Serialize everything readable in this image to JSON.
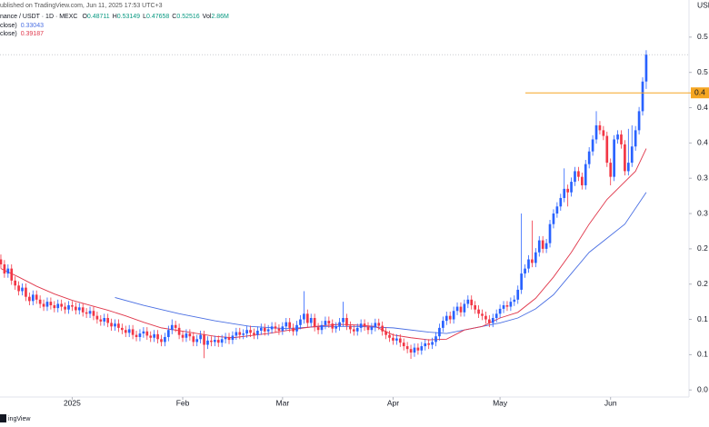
{
  "chart_data": {
    "type": "candlestick",
    "published": "ublished on TradingView.com, Jun 11, 2025 17:53 UTC+3",
    "symbol": "nance / USDT · 1D · MEXC",
    "ohlc_labels": [
      "O",
      "H",
      "L",
      "C"
    ],
    "volume_label": "Vol",
    "volume": "2.86M",
    "currency": "USD",
    "footer": "ingView",
    "up_color": "#2962ff",
    "down_color": "#f23645",
    "xlim": [
      -0.25,
      193
    ],
    "ylim": [
      0.04,
      0.6
    ],
    "xticks": [
      {
        "value": 20,
        "label": "2025"
      },
      {
        "value": 51,
        "label": "Feb"
      },
      {
        "value": 79,
        "label": "Mar"
      },
      {
        "value": 110,
        "label": "Apr"
      },
      {
        "value": 140,
        "label": "May"
      },
      {
        "value": 171,
        "label": "Jun"
      }
    ],
    "yticks": [
      {
        "value": 0.55,
        "label": "0.5"
      },
      {
        "value": 0.5,
        "label": "0.5"
      },
      {
        "value": 0.45,
        "label": "0.4"
      },
      {
        "value": 0.4,
        "label": "0.4"
      },
      {
        "value": 0.35,
        "label": "0.3"
      },
      {
        "value": 0.3,
        "label": "0.3"
      },
      {
        "value": 0.25,
        "label": "0.2"
      },
      {
        "value": 0.2,
        "label": "0.2"
      },
      {
        "value": 0.15,
        "label": "0.1"
      },
      {
        "value": 0.1,
        "label": "0.1"
      },
      {
        "value": 0.05,
        "label": "0.0"
      }
    ],
    "hline": {
      "value": 0.471,
      "label": "0.4",
      "color": "#f5a623"
    },
    "ma": [
      {
        "name": "close)",
        "color": "#4a6fe3",
        "last": 0.33043,
        "x": [
          32,
          40,
          50,
          60,
          70,
          80,
          90,
          100,
          110,
          120,
          125,
          130,
          135,
          140,
          145,
          150,
          155,
          160,
          165,
          170,
          175,
          181
        ],
        "values": [
          0.181,
          0.17,
          0.158,
          0.148,
          0.14,
          0.137,
          0.14,
          0.14,
          0.138,
          0.132,
          0.13,
          0.135,
          0.14,
          0.145,
          0.152,
          0.165,
          0.185,
          0.215,
          0.245,
          0.265,
          0.285,
          0.33
        ]
      },
      {
        "name": "close)",
        "color": "#e0364a",
        "last": 0.39187,
        "x": [
          0,
          5,
          10,
          15,
          20,
          25,
          30,
          35,
          40,
          45,
          50,
          55,
          60,
          65,
          70,
          75,
          80,
          85,
          90,
          95,
          100,
          105,
          110,
          115,
          120,
          125,
          130,
          135,
          140,
          145,
          150,
          155,
          160,
          165,
          170,
          175,
          178,
          181
        ],
        "values": [
          0.222,
          0.21,
          0.197,
          0.186,
          0.177,
          0.17,
          0.163,
          0.155,
          0.146,
          0.138,
          0.134,
          0.13,
          0.126,
          0.124,
          0.127,
          0.13,
          0.134,
          0.138,
          0.141,
          0.143,
          0.142,
          0.14,
          0.128,
          0.124,
          0.121,
          0.122,
          0.135,
          0.14,
          0.152,
          0.16,
          0.18,
          0.21,
          0.245,
          0.285,
          0.32,
          0.345,
          0.36,
          0.392
        ]
      }
    ],
    "ohlc": [
      [
        0.235,
        0.242,
        0.222,
        0.228
      ],
      [
        0.228,
        0.234,
        0.209,
        0.215
      ],
      [
        0.215,
        0.228,
        0.209,
        0.222
      ],
      [
        0.222,
        0.228,
        0.199,
        0.205
      ],
      [
        0.205,
        0.211,
        0.192,
        0.198
      ],
      [
        0.198,
        0.204,
        0.184,
        0.19
      ],
      [
        0.19,
        0.201,
        0.184,
        0.195
      ],
      [
        0.195,
        0.201,
        0.176,
        0.182
      ],
      [
        0.182,
        0.188,
        0.17,
        0.176
      ],
      [
        0.176,
        0.191,
        0.17,
        0.185
      ],
      [
        0.185,
        0.191,
        0.172,
        0.178
      ],
      [
        0.178,
        0.184,
        0.166,
        0.172
      ],
      [
        0.172,
        0.178,
        0.162,
        0.168
      ],
      [
        0.168,
        0.181,
        0.162,
        0.175
      ],
      [
        0.175,
        0.181,
        0.164,
        0.17
      ],
      [
        0.17,
        0.176,
        0.16,
        0.166
      ],
      [
        0.166,
        0.178,
        0.16,
        0.172
      ],
      [
        0.172,
        0.178,
        0.162,
        0.168
      ],
      [
        0.168,
        0.174,
        0.158,
        0.164
      ],
      [
        0.164,
        0.176,
        0.158,
        0.17
      ],
      [
        0.17,
        0.176,
        0.162,
        0.168
      ],
      [
        0.168,
        0.174,
        0.157,
        0.163
      ],
      [
        0.163,
        0.173,
        0.157,
        0.167
      ],
      [
        0.167,
        0.173,
        0.154,
        0.16
      ],
      [
        0.16,
        0.166,
        0.152,
        0.158
      ],
      [
        0.158,
        0.168,
        0.152,
        0.162
      ],
      [
        0.162,
        0.168,
        0.149,
        0.155
      ],
      [
        0.155,
        0.161,
        0.144,
        0.15
      ],
      [
        0.15,
        0.156,
        0.141,
        0.147
      ],
      [
        0.147,
        0.158,
        0.141,
        0.152
      ],
      [
        0.152,
        0.158,
        0.139,
        0.145
      ],
      [
        0.145,
        0.151,
        0.134,
        0.14
      ],
      [
        0.14,
        0.15,
        0.134,
        0.144
      ],
      [
        0.144,
        0.15,
        0.132,
        0.138
      ],
      [
        0.138,
        0.144,
        0.129,
        0.135
      ],
      [
        0.135,
        0.141,
        0.125,
        0.131
      ],
      [
        0.131,
        0.142,
        0.125,
        0.136
      ],
      [
        0.136,
        0.142,
        0.122,
        0.128
      ],
      [
        0.128,
        0.134,
        0.119,
        0.125
      ],
      [
        0.125,
        0.136,
        0.119,
        0.13
      ],
      [
        0.13,
        0.139,
        0.124,
        0.133
      ],
      [
        0.133,
        0.139,
        0.121,
        0.127
      ],
      [
        0.127,
        0.133,
        0.118,
        0.124
      ],
      [
        0.124,
        0.135,
        0.118,
        0.129
      ],
      [
        0.129,
        0.135,
        0.116,
        0.122
      ],
      [
        0.122,
        0.128,
        0.112,
        0.118
      ],
      [
        0.118,
        0.131,
        0.112,
        0.125
      ],
      [
        0.125,
        0.141,
        0.119,
        0.135
      ],
      [
        0.135,
        0.15,
        0.129,
        0.142
      ],
      [
        0.142,
        0.148,
        0.132,
        0.138
      ],
      [
        0.138,
        0.144,
        0.122,
        0.128
      ],
      [
        0.128,
        0.134,
        0.118,
        0.124
      ],
      [
        0.124,
        0.136,
        0.118,
        0.13
      ],
      [
        0.13,
        0.136,
        0.12,
        0.126
      ],
      [
        0.126,
        0.132,
        0.112,
        0.118
      ],
      [
        0.118,
        0.128,
        0.112,
        0.122
      ],
      [
        0.122,
        0.134,
        0.116,
        0.128
      ],
      [
        0.128,
        0.134,
        0.095,
        0.114
      ],
      [
        0.114,
        0.126,
        0.108,
        0.12
      ],
      [
        0.12,
        0.126,
        0.112,
        0.118
      ],
      [
        0.118,
        0.127,
        0.112,
        0.121
      ],
      [
        0.121,
        0.127,
        0.111,
        0.117
      ],
      [
        0.117,
        0.128,
        0.111,
        0.122
      ],
      [
        0.122,
        0.131,
        0.116,
        0.125
      ],
      [
        0.125,
        0.131,
        0.115,
        0.121
      ],
      [
        0.121,
        0.133,
        0.115,
        0.127
      ],
      [
        0.127,
        0.138,
        0.121,
        0.132
      ],
      [
        0.132,
        0.138,
        0.122,
        0.128
      ],
      [
        0.128,
        0.136,
        0.122,
        0.13
      ],
      [
        0.13,
        0.141,
        0.124,
        0.135
      ],
      [
        0.135,
        0.141,
        0.125,
        0.131
      ],
      [
        0.131,
        0.137,
        0.122,
        0.128
      ],
      [
        0.128,
        0.14,
        0.122,
        0.134
      ],
      [
        0.134,
        0.144,
        0.128,
        0.138
      ],
      [
        0.138,
        0.144,
        0.127,
        0.133
      ],
      [
        0.133,
        0.142,
        0.127,
        0.136
      ],
      [
        0.136,
        0.146,
        0.13,
        0.14
      ],
      [
        0.14,
        0.146,
        0.131,
        0.137
      ],
      [
        0.137,
        0.143,
        0.128,
        0.134
      ],
      [
        0.134,
        0.146,
        0.128,
        0.14
      ],
      [
        0.14,
        0.152,
        0.134,
        0.146
      ],
      [
        0.146,
        0.152,
        0.132,
        0.138
      ],
      [
        0.138,
        0.144,
        0.127,
        0.133
      ],
      [
        0.133,
        0.148,
        0.127,
        0.142
      ],
      [
        0.142,
        0.156,
        0.136,
        0.15
      ],
      [
        0.15,
        0.19,
        0.144,
        0.158
      ],
      [
        0.158,
        0.164,
        0.139,
        0.145
      ],
      [
        0.145,
        0.158,
        0.139,
        0.152
      ],
      [
        0.152,
        0.158,
        0.133,
        0.139
      ],
      [
        0.139,
        0.145,
        0.129,
        0.135
      ],
      [
        0.135,
        0.148,
        0.129,
        0.142
      ],
      [
        0.142,
        0.154,
        0.136,
        0.148
      ],
      [
        0.148,
        0.154,
        0.138,
        0.144
      ],
      [
        0.144,
        0.15,
        0.131,
        0.137
      ],
      [
        0.137,
        0.146,
        0.131,
        0.14
      ],
      [
        0.14,
        0.152,
        0.134,
        0.146
      ],
      [
        0.146,
        0.175,
        0.14,
        0.152
      ],
      [
        0.152,
        0.158,
        0.135,
        0.141
      ],
      [
        0.141,
        0.147,
        0.13,
        0.136
      ],
      [
        0.136,
        0.142,
        0.127,
        0.133
      ],
      [
        0.133,
        0.144,
        0.127,
        0.138
      ],
      [
        0.138,
        0.15,
        0.132,
        0.144
      ],
      [
        0.144,
        0.15,
        0.134,
        0.14
      ],
      [
        0.14,
        0.146,
        0.129,
        0.135
      ],
      [
        0.135,
        0.145,
        0.129,
        0.139
      ],
      [
        0.139,
        0.151,
        0.133,
        0.145
      ],
      [
        0.145,
        0.151,
        0.135,
        0.141
      ],
      [
        0.141,
        0.147,
        0.127,
        0.133
      ],
      [
        0.133,
        0.139,
        0.122,
        0.128
      ],
      [
        0.128,
        0.134,
        0.118,
        0.124
      ],
      [
        0.124,
        0.13,
        0.114,
        0.12
      ],
      [
        0.12,
        0.129,
        0.114,
        0.123
      ],
      [
        0.123,
        0.129,
        0.111,
        0.117
      ],
      [
        0.117,
        0.123,
        0.106,
        0.112
      ],
      [
        0.112,
        0.118,
        0.102,
        0.108
      ],
      [
        0.108,
        0.114,
        0.094,
        0.103
      ],
      [
        0.103,
        0.116,
        0.097,
        0.11
      ],
      [
        0.11,
        0.116,
        0.1,
        0.106
      ],
      [
        0.106,
        0.118,
        0.1,
        0.112
      ],
      [
        0.112,
        0.122,
        0.106,
        0.116
      ],
      [
        0.116,
        0.122,
        0.108,
        0.114
      ],
      [
        0.114,
        0.124,
        0.108,
        0.118
      ],
      [
        0.118,
        0.132,
        0.112,
        0.126
      ],
      [
        0.126,
        0.144,
        0.12,
        0.138
      ],
      [
        0.138,
        0.154,
        0.132,
        0.148
      ],
      [
        0.148,
        0.161,
        0.142,
        0.155
      ],
      [
        0.155,
        0.161,
        0.144,
        0.15
      ],
      [
        0.15,
        0.168,
        0.144,
        0.162
      ],
      [
        0.162,
        0.174,
        0.156,
        0.168
      ],
      [
        0.168,
        0.174,
        0.154,
        0.16
      ],
      [
        0.16,
        0.178,
        0.154,
        0.172
      ],
      [
        0.172,
        0.184,
        0.166,
        0.178
      ],
      [
        0.178,
        0.184,
        0.164,
        0.17
      ],
      [
        0.17,
        0.176,
        0.158,
        0.164
      ],
      [
        0.164,
        0.17,
        0.152,
        0.158
      ],
      [
        0.158,
        0.164,
        0.149,
        0.155
      ],
      [
        0.155,
        0.161,
        0.144,
        0.15
      ],
      [
        0.15,
        0.156,
        0.139,
        0.145
      ],
      [
        0.145,
        0.158,
        0.139,
        0.152
      ],
      [
        0.152,
        0.164,
        0.146,
        0.158
      ],
      [
        0.158,
        0.171,
        0.152,
        0.165
      ],
      [
        0.165,
        0.176,
        0.159,
        0.17
      ],
      [
        0.17,
        0.176,
        0.162,
        0.168
      ],
      [
        0.168,
        0.181,
        0.162,
        0.175
      ],
      [
        0.175,
        0.184,
        0.169,
        0.178
      ],
      [
        0.178,
        0.198,
        0.172,
        0.192
      ],
      [
        0.192,
        0.3,
        0.186,
        0.215
      ],
      [
        0.215,
        0.228,
        0.209,
        0.222
      ],
      [
        0.222,
        0.241,
        0.216,
        0.235
      ],
      [
        0.235,
        0.29,
        0.224,
        0.23
      ],
      [
        0.23,
        0.251,
        0.224,
        0.245
      ],
      [
        0.245,
        0.268,
        0.239,
        0.262
      ],
      [
        0.262,
        0.268,
        0.244,
        0.25
      ],
      [
        0.25,
        0.264,
        0.244,
        0.258
      ],
      [
        0.258,
        0.291,
        0.252,
        0.285
      ],
      [
        0.285,
        0.306,
        0.279,
        0.3
      ],
      [
        0.3,
        0.316,
        0.294,
        0.31
      ],
      [
        0.31,
        0.328,
        0.304,
        0.322
      ],
      [
        0.322,
        0.364,
        0.316,
        0.335
      ],
      [
        0.335,
        0.341,
        0.31,
        0.33
      ],
      [
        0.33,
        0.351,
        0.324,
        0.345
      ],
      [
        0.345,
        0.366,
        0.339,
        0.36
      ],
      [
        0.36,
        0.366,
        0.346,
        0.352
      ],
      [
        0.352,
        0.358,
        0.334,
        0.34
      ],
      [
        0.34,
        0.376,
        0.334,
        0.37
      ],
      [
        0.37,
        0.394,
        0.364,
        0.388
      ],
      [
        0.388,
        0.411,
        0.382,
        0.405
      ],
      [
        0.405,
        0.445,
        0.399,
        0.425
      ],
      [
        0.425,
        0.431,
        0.412,
        0.418
      ],
      [
        0.418,
        0.424,
        0.404,
        0.41
      ],
      [
        0.41,
        0.416,
        0.366,
        0.372
      ],
      [
        0.372,
        0.378,
        0.34,
        0.352
      ],
      [
        0.352,
        0.411,
        0.346,
        0.405
      ],
      [
        0.405,
        0.418,
        0.399,
        0.412
      ],
      [
        0.412,
        0.418,
        0.392,
        0.398
      ],
      [
        0.398,
        0.404,
        0.354,
        0.36
      ],
      [
        0.36,
        0.42,
        0.354,
        0.372
      ],
      [
        0.372,
        0.425,
        0.366,
        0.395
      ],
      [
        0.395,
        0.424,
        0.389,
        0.418
      ],
      [
        0.418,
        0.451,
        0.412,
        0.445
      ],
      [
        0.445,
        0.493,
        0.439,
        0.487
      ],
      [
        0.48711,
        0.53149,
        0.47658,
        0.52516
      ]
    ]
  }
}
